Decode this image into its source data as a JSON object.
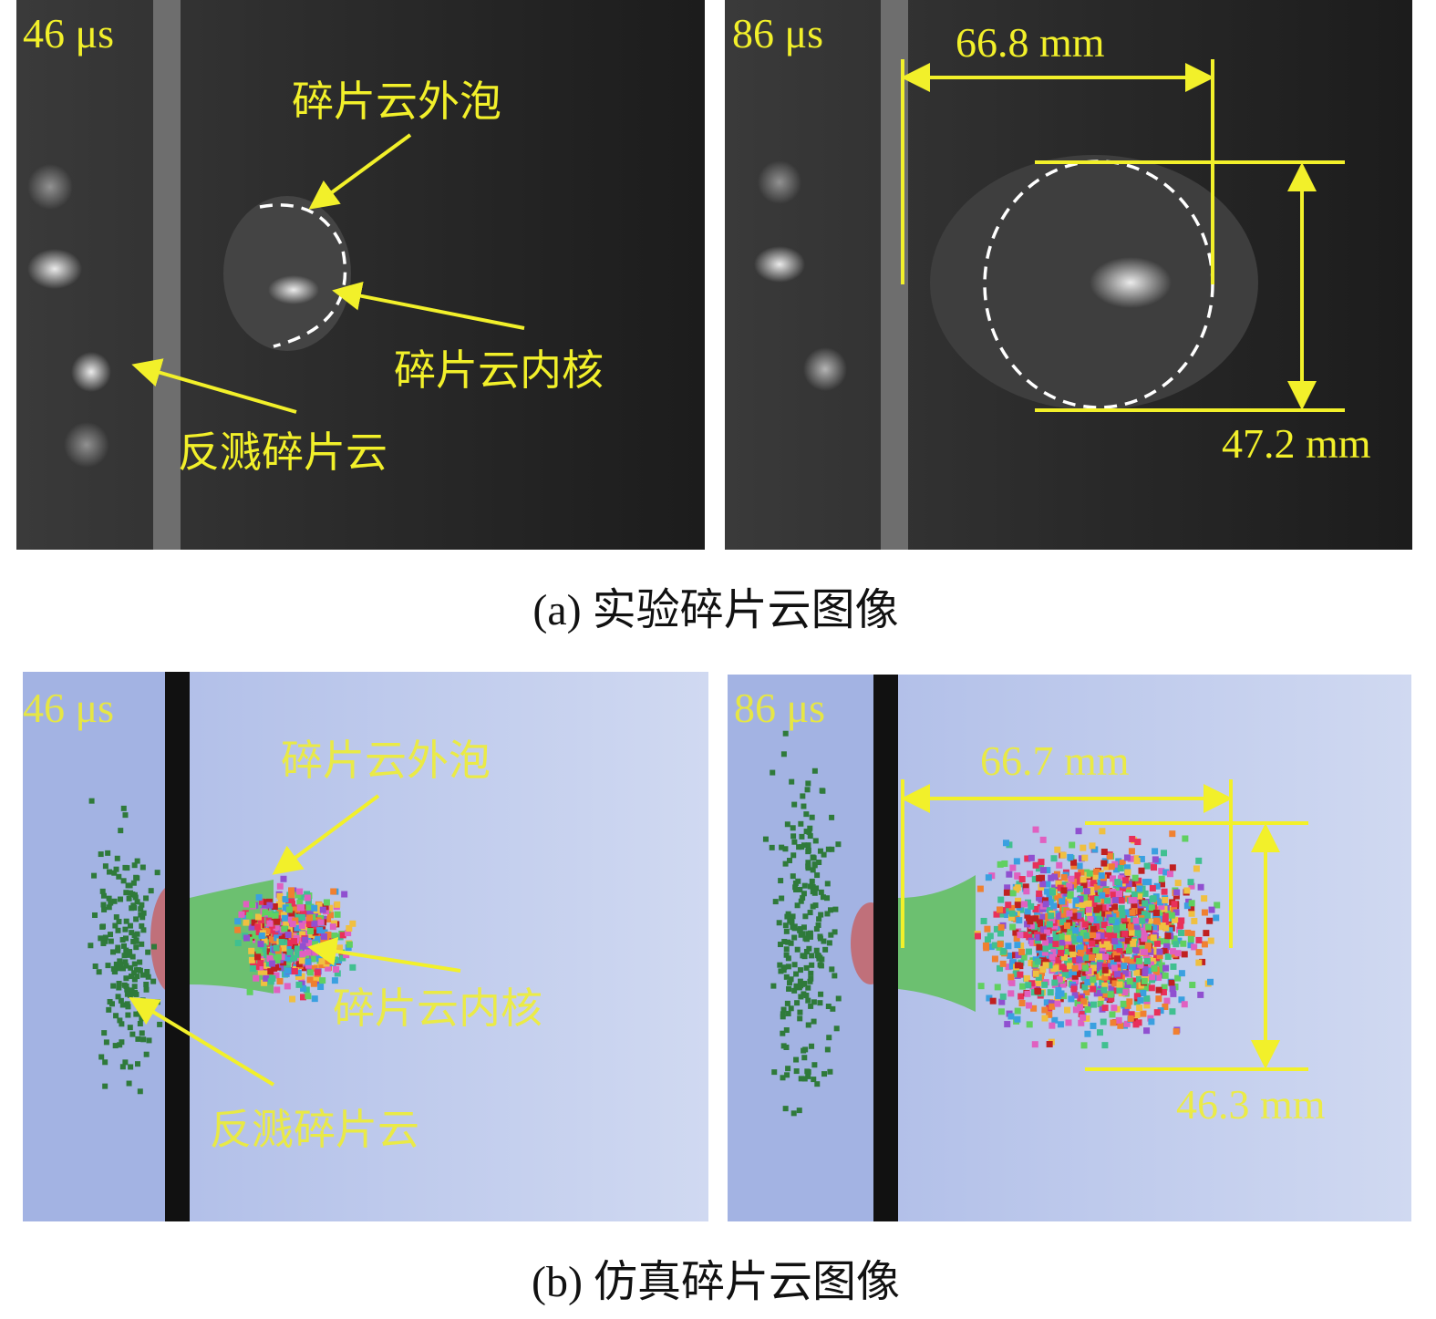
{
  "panels": [
    {
      "caption": "(a) 实验碎片云图像",
      "images": [
        {
          "time": "46 μs",
          "labels": [
            "碎片云外泡",
            "碎片云内核",
            "反溅碎片云"
          ]
        },
        {
          "time": "86 μs",
          "width": "66.8 mm",
          "height": "47.2 mm"
        }
      ]
    },
    {
      "caption": "(b) 仿真碎片云图像",
      "images": [
        {
          "time": "46 μs",
          "labels": [
            "碎片云外泡",
            "碎片云内核",
            "反溅碎片云"
          ]
        },
        {
          "time": "86 μs",
          "width": "66.7 mm",
          "height": "46.3 mm"
        }
      ]
    }
  ]
}
